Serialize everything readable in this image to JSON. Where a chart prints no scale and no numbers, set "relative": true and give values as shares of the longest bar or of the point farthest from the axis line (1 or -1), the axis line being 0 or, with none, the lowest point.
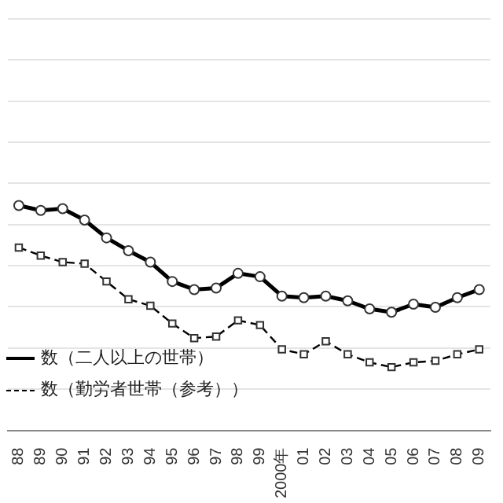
{
  "chart_data": {
    "type": "line",
    "relative": true,
    "grid": "y",
    "legend": "bottom left",
    "categories": [
      "88",
      "89",
      "90",
      "91",
      "92",
      "93",
      "94",
      "95",
      "96",
      "97",
      "98",
      "99",
      "2000年",
      "01",
      "02",
      "03",
      "04",
      "05",
      "06",
      "07",
      "08",
      "09"
    ],
    "series": [
      {
        "name": "数（二人以上の世帯）",
        "color": "#000000",
        "marker": "circle",
        "line_style": "solid",
        "values": [
          1,
          0.978,
          0.986,
          0.935,
          0.856,
          0.799,
          0.748,
          0.662,
          0.626,
          0.633,
          0.698,
          0.683,
          0.597,
          0.59,
          0.597,
          0.576,
          0.54,
          0.525,
          0.561,
          0.547,
          0.59,
          0.626
        ]
      },
      {
        "name": "数（勤労者世帯（参考））",
        "color": "#000000",
        "marker": "square",
        "line_style": "dashed",
        "values": [
          0.813,
          0.777,
          0.748,
          0.741,
          0.662,
          0.583,
          0.554,
          0.475,
          0.41,
          0.417,
          0.489,
          0.468,
          0.36,
          0.338,
          0.396,
          0.338,
          0.302,
          0.281,
          0.302,
          0.309,
          0.338,
          0.36
        ]
      }
    ]
  }
}
